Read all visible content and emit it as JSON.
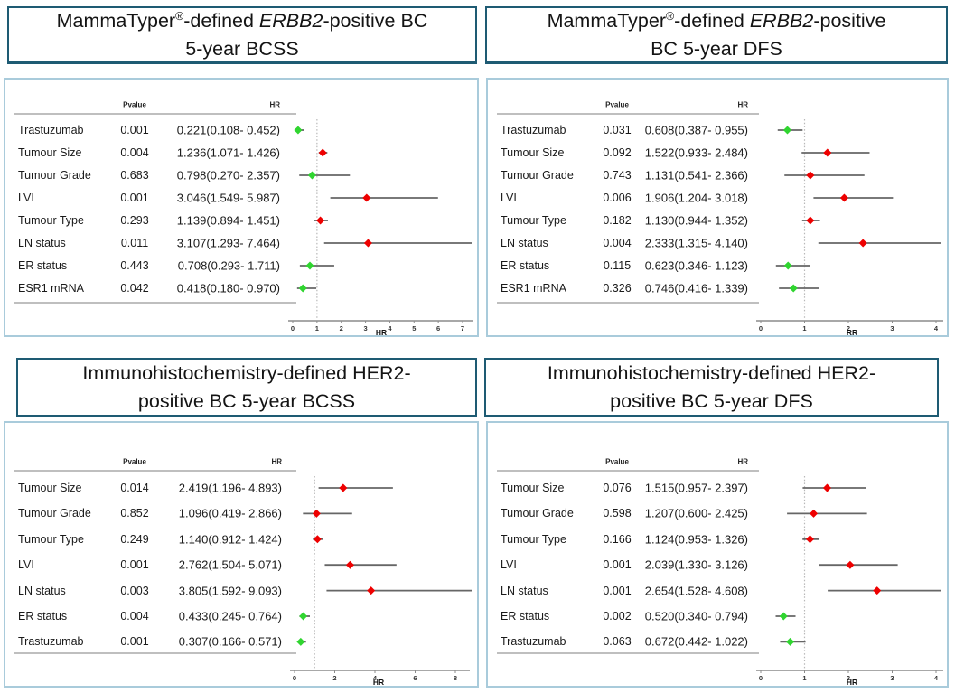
{
  "table_headers": {
    "pvalue": "Pvalue",
    "hr": "HR"
  },
  "colors": {
    "marker_red": "#EE0000",
    "marker_green": "#30D530",
    "ci_line": "#666666",
    "rule_line": "#999999",
    "axis_line": "#8C8C8C",
    "ref_line": "#B8B8B8",
    "title_border": "#1E5B73",
    "panel_border": "#A9CBDB",
    "text": "#1A1A1A"
  },
  "chart_data": [
    {
      "type": "forest",
      "position": "top-left",
      "title_lines": [
        [
          {
            "text": "MammaTyper",
            "style": "normal"
          },
          {
            "text": "®",
            "style": "sup"
          },
          {
            "text": "-defined ",
            "style": "normal"
          },
          {
            "text": "ERBB2",
            "style": "italic"
          },
          {
            "text": "-positive BC",
            "style": "normal"
          }
        ],
        [
          {
            "text": "5-year BCSS",
            "style": "normal"
          }
        ]
      ],
      "columns": {
        "pvalue": "Pvalue",
        "hr": "HR"
      },
      "rows": [
        {
          "label": "Trastuzumab",
          "pvalue": "0.001",
          "hr_ci": "0.221(0.108- 0.452)",
          "hr": 0.221,
          "lo": 0.108,
          "hi": 0.452,
          "marker": "green"
        },
        {
          "label": "Tumour Size",
          "pvalue": "0.004",
          "hr_ci": "1.236(1.071- 1.426)",
          "hr": 1.236,
          "lo": 1.071,
          "hi": 1.426,
          "marker": "red"
        },
        {
          "label": "Tumour Grade",
          "pvalue": "0.683",
          "hr_ci": "0.798(0.270- 2.357)",
          "hr": 0.798,
          "lo": 0.27,
          "hi": 2.357,
          "marker": "green"
        },
        {
          "label": "LVI",
          "pvalue": "0.001",
          "hr_ci": "3.046(1.549- 5.987)",
          "hr": 3.046,
          "lo": 1.549,
          "hi": 5.987,
          "marker": "red"
        },
        {
          "label": "Tumour Type",
          "pvalue": "0.293",
          "hr_ci": "1.139(0.894- 1.451)",
          "hr": 1.139,
          "lo": 0.894,
          "hi": 1.451,
          "marker": "red"
        },
        {
          "label": "LN status",
          "pvalue": "0.011",
          "hr_ci": "3.107(1.293- 7.464)",
          "hr": 3.107,
          "lo": 1.293,
          "hi": 7.464,
          "marker": "red"
        },
        {
          "label": "ER status",
          "pvalue": "0.443",
          "hr_ci": "0.708(0.293- 1.711)",
          "hr": 0.708,
          "lo": 0.293,
          "hi": 1.711,
          "marker": "green"
        },
        {
          "label": "ESR1 mRNA",
          "pvalue": "0.042",
          "hr_ci": "0.418(0.180- 0.970)",
          "hr": 0.418,
          "lo": 0.18,
          "hi": 0.97,
          "marker": "green"
        }
      ],
      "axis": {
        "min": 0,
        "max": 7,
        "ticks": [
          0,
          1,
          2,
          3,
          4,
          5,
          6,
          7
        ],
        "label": "HR",
        "ref": 1,
        "grid": false
      }
    },
    {
      "type": "forest",
      "position": "top-right",
      "title_lines": [
        [
          {
            "text": "MammaTyper",
            "style": "normal"
          },
          {
            "text": "®",
            "style": "sup"
          },
          {
            "text": "-defined ",
            "style": "normal"
          },
          {
            "text": "ERBB2",
            "style": "italic"
          },
          {
            "text": "-positive",
            "style": "normal"
          }
        ],
        [
          {
            "text": "BC 5-year DFS",
            "style": "normal"
          }
        ]
      ],
      "columns": {
        "pvalue": "Pvalue",
        "hr": "HR"
      },
      "rows": [
        {
          "label": "Trastuzumab",
          "pvalue": "0.031",
          "hr_ci": "0.608(0.387- 0.955)",
          "hr": 0.608,
          "lo": 0.387,
          "hi": 0.955,
          "marker": "green"
        },
        {
          "label": "Tumour Size",
          "pvalue": "0.092",
          "hr_ci": "1.522(0.933- 2.484)",
          "hr": 1.522,
          "lo": 0.933,
          "hi": 2.484,
          "marker": "red"
        },
        {
          "label": "Tumour Grade",
          "pvalue": "0.743",
          "hr_ci": "1.131(0.541- 2.366)",
          "hr": 1.131,
          "lo": 0.541,
          "hi": 2.366,
          "marker": "red"
        },
        {
          "label": "LVI",
          "pvalue": "0.006",
          "hr_ci": "1.906(1.204- 3.018)",
          "hr": 1.906,
          "lo": 1.204,
          "hi": 3.018,
          "marker": "red"
        },
        {
          "label": "Tumour Type",
          "pvalue": "0.182",
          "hr_ci": "1.130(0.944- 1.352)",
          "hr": 1.13,
          "lo": 0.944,
          "hi": 1.352,
          "marker": "red"
        },
        {
          "label": "LN status",
          "pvalue": "0.004",
          "hr_ci": "2.333(1.315- 4.140)",
          "hr": 2.333,
          "lo": 1.315,
          "hi": 4.14,
          "marker": "red"
        },
        {
          "label": "ER status",
          "pvalue": "0.115",
          "hr_ci": "0.623(0.346- 1.123)",
          "hr": 0.623,
          "lo": 0.346,
          "hi": 1.123,
          "marker": "green"
        },
        {
          "label": "ESR1 mRNA",
          "pvalue": "0.326",
          "hr_ci": "0.746(0.416- 1.339)",
          "hr": 0.746,
          "lo": 0.416,
          "hi": 1.339,
          "marker": "green"
        }
      ],
      "axis": {
        "min": 0,
        "max": 4,
        "ticks": [
          0,
          1,
          2,
          3,
          4
        ],
        "label": "RR",
        "ref": 1,
        "grid": false
      }
    },
    {
      "type": "forest",
      "position": "bottom-left",
      "title_lines": [
        [
          {
            "text": "Immunohistochemistry-defined HER2-",
            "style": "normal"
          }
        ],
        [
          {
            "text": "positive BC 5-year BCSS",
            "style": "normal"
          }
        ]
      ],
      "columns": {
        "pvalue": "Pvalue",
        "hr": "HR"
      },
      "rows": [
        {
          "label": "Tumour Size",
          "pvalue": "0.014",
          "hr_ci": "2.419(1.196- 4.893)",
          "hr": 2.419,
          "lo": 1.196,
          "hi": 4.893,
          "marker": "red"
        },
        {
          "label": "Tumour Grade",
          "pvalue": "0.852",
          "hr_ci": "1.096(0.419- 2.866)",
          "hr": 1.096,
          "lo": 0.419,
          "hi": 2.866,
          "marker": "red"
        },
        {
          "label": "Tumour Type",
          "pvalue": "0.249",
          "hr_ci": "1.140(0.912- 1.424)",
          "hr": 1.14,
          "lo": 0.912,
          "hi": 1.424,
          "marker": "red"
        },
        {
          "label": "LVI",
          "pvalue": "0.001",
          "hr_ci": "2.762(1.504- 5.071)",
          "hr": 2.762,
          "lo": 1.504,
          "hi": 5.071,
          "marker": "red"
        },
        {
          "label": "LN status",
          "pvalue": "0.003",
          "hr_ci": "3.805(1.592- 9.093)",
          "hr": 3.805,
          "lo": 1.592,
          "hi": 9.093,
          "marker": "red"
        },
        {
          "label": "ER status",
          "pvalue": "0.004",
          "hr_ci": "0.433(0.245- 0.764)",
          "hr": 0.433,
          "lo": 0.245,
          "hi": 0.764,
          "marker": "green"
        },
        {
          "label": "Trastuzumab",
          "pvalue": "0.001",
          "hr_ci": "0.307(0.166- 0.571)",
          "hr": 0.307,
          "lo": 0.166,
          "hi": 0.571,
          "marker": "green"
        }
      ],
      "axis": {
        "min": 0,
        "max": 8,
        "ticks": [
          0,
          2,
          4,
          6,
          8
        ],
        "label": "HR",
        "ref": 1,
        "grid": false
      }
    },
    {
      "type": "forest",
      "position": "bottom-right",
      "title_lines": [
        [
          {
            "text": "Immunohistochemistry-defined HER2-",
            "style": "normal"
          }
        ],
        [
          {
            "text": "positive BC 5-year DFS",
            "style": "normal"
          }
        ]
      ],
      "columns": {
        "pvalue": "Pvalue",
        "hr": "HR"
      },
      "rows": [
        {
          "label": "Tumour Size",
          "pvalue": "0.076",
          "hr_ci": "1.515(0.957- 2.397)",
          "hr": 1.515,
          "lo": 0.957,
          "hi": 2.397,
          "marker": "red"
        },
        {
          "label": "Tumour Grade",
          "pvalue": "0.598",
          "hr_ci": "1.207(0.600- 2.425)",
          "hr": 1.207,
          "lo": 0.6,
          "hi": 2.425,
          "marker": "red"
        },
        {
          "label": "Tumour Type",
          "pvalue": "0.166",
          "hr_ci": "1.124(0.953- 1.326)",
          "hr": 1.124,
          "lo": 0.953,
          "hi": 1.326,
          "marker": "red"
        },
        {
          "label": "LVI",
          "pvalue": "0.001",
          "hr_ci": "2.039(1.330- 3.126)",
          "hr": 2.039,
          "lo": 1.33,
          "hi": 3.126,
          "marker": "red"
        },
        {
          "label": "LN status",
          "pvalue": "0.001",
          "hr_ci": "2.654(1.528- 4.608)",
          "hr": 2.654,
          "lo": 1.528,
          "hi": 4.608,
          "marker": "red"
        },
        {
          "label": "ER status",
          "pvalue": "0.002",
          "hr_ci": "0.520(0.340- 0.794)",
          "hr": 0.52,
          "lo": 0.34,
          "hi": 0.794,
          "marker": "green"
        },
        {
          "label": "Trastuzumab",
          "pvalue": "0.063",
          "hr_ci": "0.672(0.442- 1.022)",
          "hr": 0.672,
          "lo": 0.442,
          "hi": 1.022,
          "marker": "green"
        }
      ],
      "axis": {
        "min": 0,
        "max": 4,
        "ticks": [
          0,
          1,
          2,
          3,
          4
        ],
        "label": "HR",
        "ref": 1,
        "grid": false
      }
    }
  ]
}
